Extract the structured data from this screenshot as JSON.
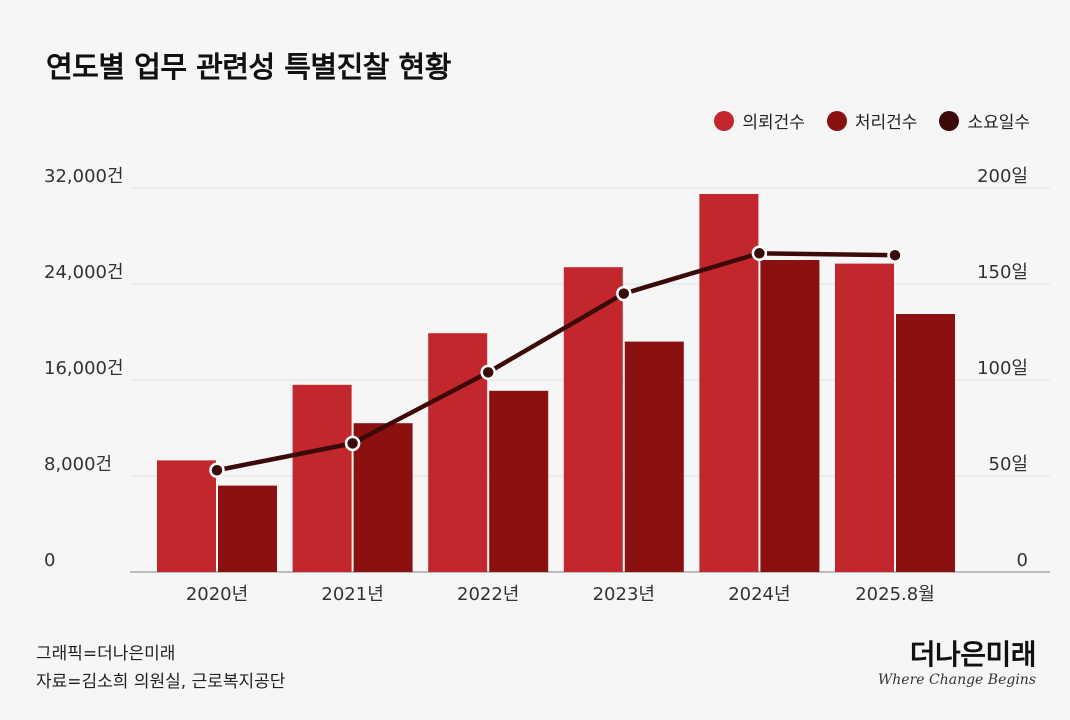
{
  "title": "연도별 업무 관련성 특별진찰 현황",
  "legend": [
    {
      "label": "의뢰건수",
      "color": "#c1272d"
    },
    {
      "label": "처리건수",
      "color": "#8b1010"
    },
    {
      "label": "소요일수",
      "color": "#3d0a0a"
    }
  ],
  "footer": {
    "credit": "그래픽=더나은미래",
    "source": "자료=김소희 의원실, 근로복지공단"
  },
  "brand": {
    "name": "더나은미래",
    "tagline": "Where Change Begins"
  },
  "chart_data": {
    "type": "bar",
    "categories": [
      "2020년",
      "2021년",
      "2022년",
      "2023년",
      "2024년",
      "2025.8월"
    ],
    "series": [
      {
        "name": "의뢰건수",
        "type": "bar",
        "axis": "left",
        "color": "#c1272d",
        "values": [
          9300,
          15600,
          19900,
          25400,
          31500,
          25700
        ]
      },
      {
        "name": "처리건수",
        "type": "bar",
        "axis": "left",
        "color": "#8b1010",
        "values": [
          7200,
          12400,
          15100,
          19200,
          26000,
          21500
        ]
      },
      {
        "name": "소요일수",
        "type": "line",
        "axis": "right",
        "color": "#3d0a0a",
        "values": [
          53,
          67,
          104,
          145,
          166,
          165
        ]
      }
    ],
    "y_left": {
      "min": 0,
      "max": 32000,
      "ticks": [
        "0",
        "8,000건",
        "16,000건",
        "24,000건",
        "32,000건"
      ],
      "tick_values": [
        0,
        8000,
        16000,
        24000,
        32000
      ]
    },
    "y_right": {
      "min": 0,
      "max": 200,
      "ticks": [
        "0",
        "50일",
        "100일",
        "150일",
        "200일"
      ],
      "tick_values": [
        0,
        50,
        100,
        150,
        200
      ]
    },
    "grid": true,
    "legend_position": "top-right"
  }
}
